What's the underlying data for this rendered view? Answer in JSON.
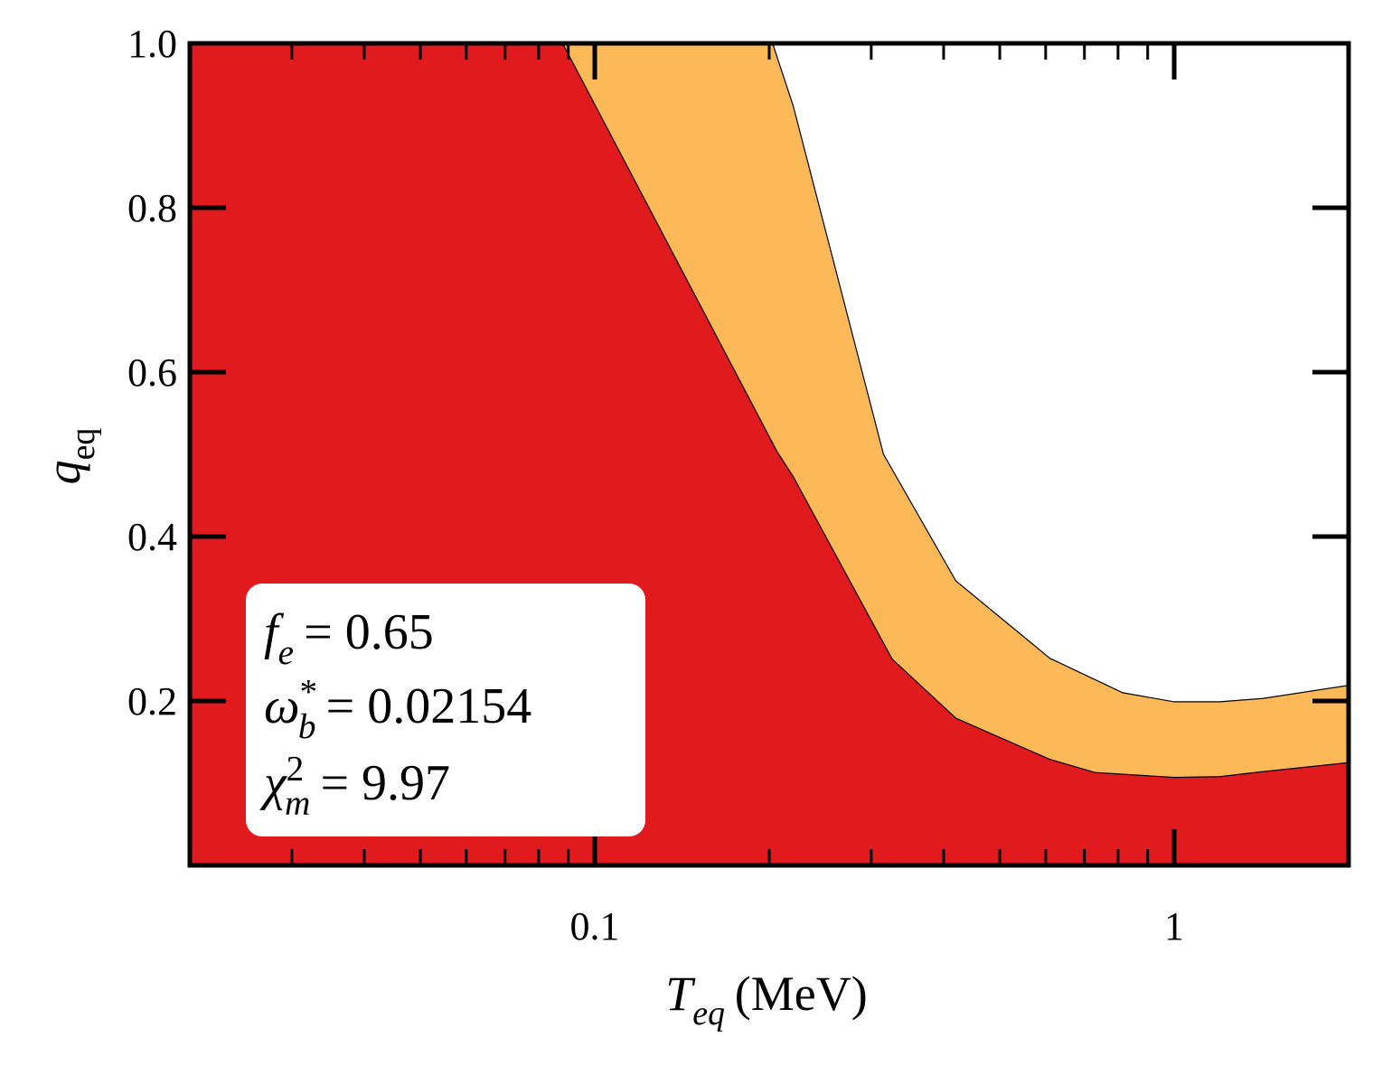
{
  "chart_data": {
    "type": "area",
    "xlabel": {
      "symbol": "T",
      "sub": "eq",
      "text": "(MeV)"
    },
    "ylabel": {
      "symbol": "q",
      "sub": "eq"
    },
    "xlog": true,
    "xlim": [
      0.02,
      2
    ],
    "ylim": [
      0,
      1
    ],
    "xticks": [
      0.1,
      1
    ],
    "xminor_ticks": [
      0.02,
      0.03,
      0.04,
      0.05,
      0.06,
      0.07,
      0.08,
      0.09,
      0.2,
      0.3,
      0.4,
      0.5,
      0.6,
      0.7,
      0.8,
      0.9,
      2
    ],
    "yticks": [
      0.2,
      0.4,
      0.6,
      0.8,
      {
        "value": 1,
        "label": "1.0"
      }
    ],
    "series": [
      {
        "color": "#fdb958",
        "x": [
          0.02,
          0.2027,
          0.22,
          0.315,
          0.42,
          0.61,
          0.815,
          1.0,
          1.2,
          1.42,
          2.0
        ],
        "values": [
          1,
          1,
          0.924,
          0.5,
          0.346,
          0.252,
          0.21,
          0.199,
          0.199,
          0.203,
          0.219
        ]
      },
      {
        "color": "#e11a1e",
        "x": [
          0.02,
          0.088,
          0.2065,
          0.22,
          0.326,
          0.42,
          0.61,
          0.73,
          1.0,
          1.2,
          1.42,
          2.0
        ],
        "values": [
          1,
          1,
          0.503,
          0.473,
          0.251,
          0.179,
          0.129,
          0.113,
          0.107,
          0.108,
          0.114,
          0.125
        ]
      }
    ],
    "annotations": [
      {
        "symbol": "f",
        "sub": "e",
        "text": "= 0.65"
      },
      {
        "symbol": "ω",
        "sub": "b",
        "sup": "*",
        "text": "= 0.02154"
      },
      {
        "symbol": "χ",
        "sub": "m",
        "sup": "2",
        "text": "= 9.97"
      }
    ]
  }
}
